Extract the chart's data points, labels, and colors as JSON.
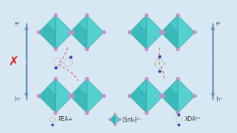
{
  "bg_color": "#d8e8f2",
  "oct_color_left": "#3bbfbf",
  "oct_color_right": "#4dcfcf",
  "oct_edge_color": "#2a9898",
  "ball_color": "#c090c8",
  "arrow_color": "#6090c0",
  "dashed_color": "#e06060",
  "cross_color": "#dd2020",
  "text_color": "#444444",
  "label_pea": "PEA+",
  "label_sni": "[SnI₄]²⁻",
  "label_xda": "XDA²⁺",
  "e_label": "e⁻",
  "h_label": "h⁺",
  "mol_color": "#bbbbbb",
  "nh_color": "#3344bb"
}
